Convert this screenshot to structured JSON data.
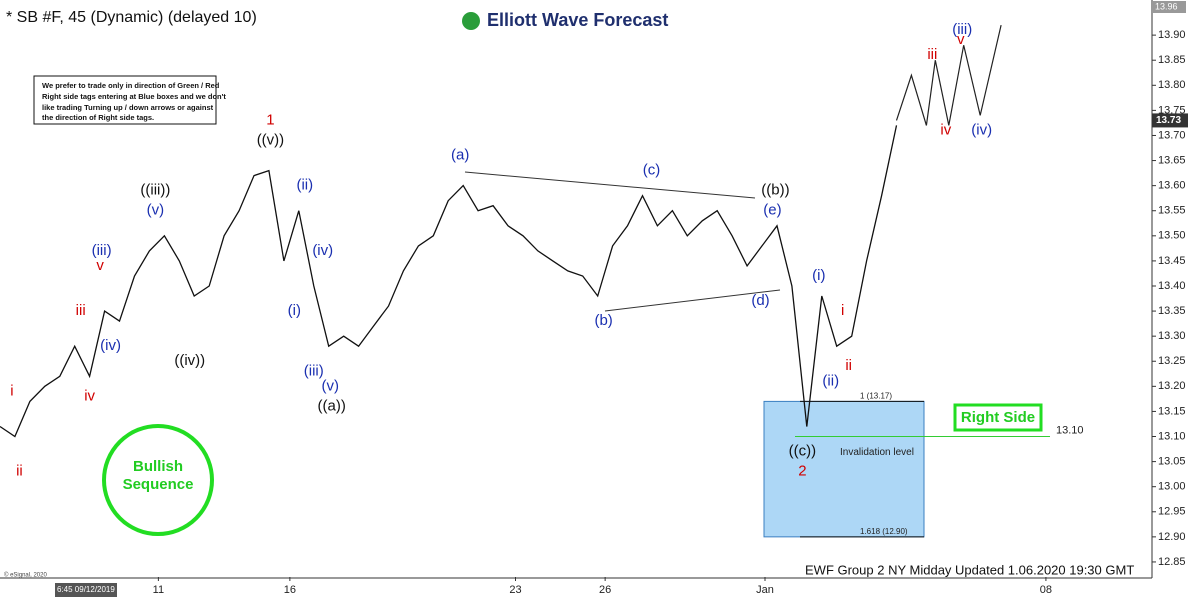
{
  "header": {
    "title": "* SB #F, 45 (Dynamic) (delayed 10)",
    "logo": "Elliott Wave Forecast",
    "note": [
      "We prefer to trade only in direction of Green / Red",
      "Right side tags entering at Blue boxes and we don't",
      "like trading Turning up / down arrows or against",
      "the direction of Right side tags."
    ],
    "badge": "Bullish Sequence",
    "right_side": "Right Side",
    "footer": "EWF Group 2 NY Midday Updated 1.06.2020 19:30 GMT",
    "copyright": "© eSignal, 2020",
    "start_time": "6:45 09/12/2019"
  },
  "chart_data": {
    "type": "line",
    "color": "#111111",
    "x": [
      0,
      1,
      2,
      3,
      4,
      5,
      6,
      7,
      8,
      9,
      10,
      11,
      12,
      13,
      14,
      15,
      16,
      17,
      18,
      19,
      20,
      21,
      22,
      23,
      24,
      25,
      26,
      27,
      28,
      29,
      30,
      31,
      32,
      33,
      34,
      35,
      36,
      37,
      38,
      39,
      40,
      41,
      42,
      43,
      44,
      45,
      46,
      47,
      48,
      49,
      50,
      51,
      52,
      53,
      54,
      55,
      56,
      57,
      58,
      59,
      60
    ],
    "values": [
      13.12,
      13.1,
      13.17,
      13.2,
      13.22,
      13.28,
      13.22,
      13.35,
      13.33,
      13.42,
      13.47,
      13.5,
      13.45,
      13.38,
      13.4,
      13.5,
      13.55,
      13.62,
      13.63,
      13.45,
      13.55,
      13.4,
      13.28,
      13.3,
      13.28,
      13.32,
      13.36,
      13.43,
      13.48,
      13.5,
      13.57,
      13.6,
      13.55,
      13.56,
      13.52,
      13.5,
      13.47,
      13.45,
      13.43,
      13.42,
      13.38,
      13.48,
      13.52,
      13.58,
      13.52,
      13.55,
      13.5,
      13.53,
      13.55,
      13.5,
      13.44,
      13.48,
      13.52,
      13.4,
      13.12,
      13.38,
      13.28,
      13.3,
      13.45,
      13.58,
      13.72
    ],
    "projection": {
      "x": [
        60,
        61,
        62,
        62.6,
        63.5,
        64.5,
        65.6,
        67
      ],
      "values": [
        13.73,
        13.82,
        13.72,
        13.85,
        13.72,
        13.88,
        13.74,
        13.92
      ]
    },
    "xlim": [
      0,
      77.1
    ],
    "xticks": [
      {
        "value": 10.6,
        "label": "11"
      },
      {
        "value": 19.4,
        "label": "16"
      },
      {
        "value": 34.5,
        "label": "23"
      },
      {
        "value": 40.5,
        "label": "26"
      },
      {
        "value": 51.2,
        "label": "Jan"
      },
      {
        "value": 70,
        "label": "08"
      }
    ],
    "ylim": [
      12.82,
      13.97
    ],
    "yticks": [
      12.85,
      {
        "value": 12.9,
        "label": "12.90"
      },
      12.95,
      {
        "value": 13,
        "label": "13.00"
      },
      13.05,
      {
        "value": 13.1,
        "label": "13.10"
      },
      13.15,
      {
        "value": 13.2,
        "label": "13.20"
      },
      13.25,
      {
        "value": 13.3,
        "label": "13.30"
      },
      13.35,
      {
        "value": 13.4,
        "label": "13.40"
      },
      13.45,
      {
        "value": 13.5,
        "label": "13.50"
      },
      13.55,
      {
        "value": 13.6,
        "label": "13.60"
      },
      13.65,
      {
        "value": 13.7,
        "label": "13.70"
      },
      13.75,
      {
        "value": 13.8,
        "label": "13.80"
      },
      13.85,
      {
        "value": 13.9,
        "label": "13.90"
      }
    ],
    "last_price": {
      "value": 13.73,
      "label": "13.73"
    },
    "top_price": {
      "value": 13.96,
      "label": "13.96"
    },
    "target_box": {
      "top": 13.17,
      "bottom": 12.9,
      "top_label": "1 (13.17)",
      "bottom_label": "1.618 (12.90)"
    },
    "invalidation": {
      "value": 13.1,
      "value_label": "13.10",
      "label": "Invalidation level"
    },
    "annotations": [
      {
        "text": "i",
        "x": 0.8,
        "y": 13.19,
        "color": "#d00000"
      },
      {
        "text": "ii",
        "x": 1.3,
        "y": 13.03,
        "color": "#d00000"
      },
      {
        "text": "iii",
        "x": 5.4,
        "y": 13.35,
        "color": "#d00000"
      },
      {
        "text": "iv",
        "x": 6,
        "y": 13.18,
        "color": "#d00000"
      },
      {
        "text": "v",
        "x": 6.7,
        "y": 13.44,
        "color": "#d00000"
      },
      {
        "text": "(iii)",
        "x": 6.8,
        "y": 13.47,
        "color": "#1a2fb0"
      },
      {
        "text": "(iv)",
        "x": 7.4,
        "y": 13.28,
        "color": "#1a2fb0"
      },
      {
        "text": "(v)",
        "x": 10.4,
        "y": 13.55,
        "color": "#1a2fb0"
      },
      {
        "text": "((iii))",
        "x": 10.4,
        "y": 13.59,
        "color": "#111111"
      },
      {
        "text": "((iv))",
        "x": 12.7,
        "y": 13.25,
        "color": "#111111"
      },
      {
        "text": "1",
        "x": 18.1,
        "y": 13.73,
        "color": "#d00000"
      },
      {
        "text": "((v))",
        "x": 18.1,
        "y": 13.69,
        "color": "#111111"
      },
      {
        "text": "(ii)",
        "x": 20.4,
        "y": 13.6,
        "color": "#1a2fb0"
      },
      {
        "text": "(iv)",
        "x": 21.6,
        "y": 13.47,
        "color": "#1a2fb0"
      },
      {
        "text": "(i)",
        "x": 19.7,
        "y": 13.35,
        "color": "#1a2fb0"
      },
      {
        "text": "(iii)",
        "x": 21,
        "y": 13.23,
        "color": "#1a2fb0"
      },
      {
        "text": "(v)",
        "x": 22.1,
        "y": 13.2,
        "color": "#1a2fb0"
      },
      {
        "text": "((a))",
        "x": 22.2,
        "y": 13.16,
        "color": "#111111"
      },
      {
        "text": "(a)",
        "x": 30.8,
        "y": 13.66,
        "color": "#1a2fb0"
      },
      {
        "text": "(c)",
        "x": 43.6,
        "y": 13.63,
        "color": "#1a2fb0"
      },
      {
        "text": "((b))",
        "x": 51.9,
        "y": 13.59,
        "color": "#111111"
      },
      {
        "text": "(e)",
        "x": 51.7,
        "y": 13.55,
        "color": "#1a2fb0"
      },
      {
        "text": "(b)",
        "x": 40.4,
        "y": 13.33,
        "color": "#1a2fb0"
      },
      {
        "text": "(d)",
        "x": 50.9,
        "y": 13.37,
        "color": "#1a2fb0"
      },
      {
        "text": "(i)",
        "x": 54.8,
        "y": 13.42,
        "color": "#1a2fb0"
      },
      {
        "text": "i",
        "x": 56.4,
        "y": 13.35,
        "color": "#d00000"
      },
      {
        "text": "ii",
        "x": 56.8,
        "y": 13.24,
        "color": "#d00000"
      },
      {
        "text": "(ii)",
        "x": 55.6,
        "y": 13.21,
        "color": "#1a2fb0"
      },
      {
        "text": "((c))",
        "x": 53.7,
        "y": 13.07,
        "color": "#111111"
      },
      {
        "text": "2",
        "x": 53.7,
        "y": 13.03,
        "color": "#d00000"
      },
      {
        "text": "iii",
        "x": 62.4,
        "y": 13.86,
        "color": "#d00000"
      },
      {
        "text": "v",
        "x": 64.3,
        "y": 13.89,
        "color": "#d00000"
      },
      {
        "text": "(iii)",
        "x": 64.4,
        "y": 13.91,
        "color": "#1a2fb0"
      },
      {
        "text": "iv",
        "x": 63.3,
        "y": 13.71,
        "color": "#d00000"
      },
      {
        "text": "(iv)",
        "x": 65.7,
        "y": 13.71,
        "color": "#1a2fb0"
      }
    ]
  }
}
